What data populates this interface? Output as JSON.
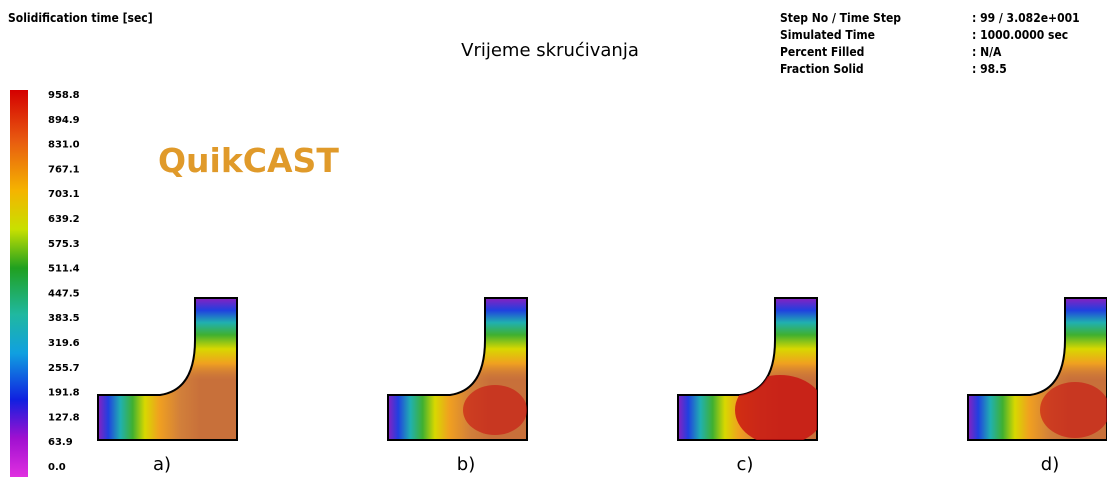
{
  "header": {
    "result_label": "Solidification time [sec]",
    "title": "Vrijeme skrućivanja",
    "brand": "QuikCAST"
  },
  "info": {
    "rows": [
      [
        "Step No / Time Step",
        ": 99 / 3.082e+001"
      ],
      [
        "Simulated Time",
        ": 1000.0000 sec"
      ],
      [
        "Percent Filled",
        ": N/A"
      ],
      [
        "Fraction Solid",
        ": 98.5"
      ]
    ]
  },
  "legend": {
    "labels": [
      "958.8",
      "894.9",
      "831.0",
      "767.1",
      "703.1",
      "639.2",
      "575.3",
      "511.4",
      "447.5",
      "383.5",
      "319.6",
      "255.7",
      "191.8",
      "127.8",
      "63.9",
      "0.0"
    ]
  },
  "panels": {
    "labels": [
      "a)",
      "b)",
      "c)",
      "d)"
    ]
  }
}
